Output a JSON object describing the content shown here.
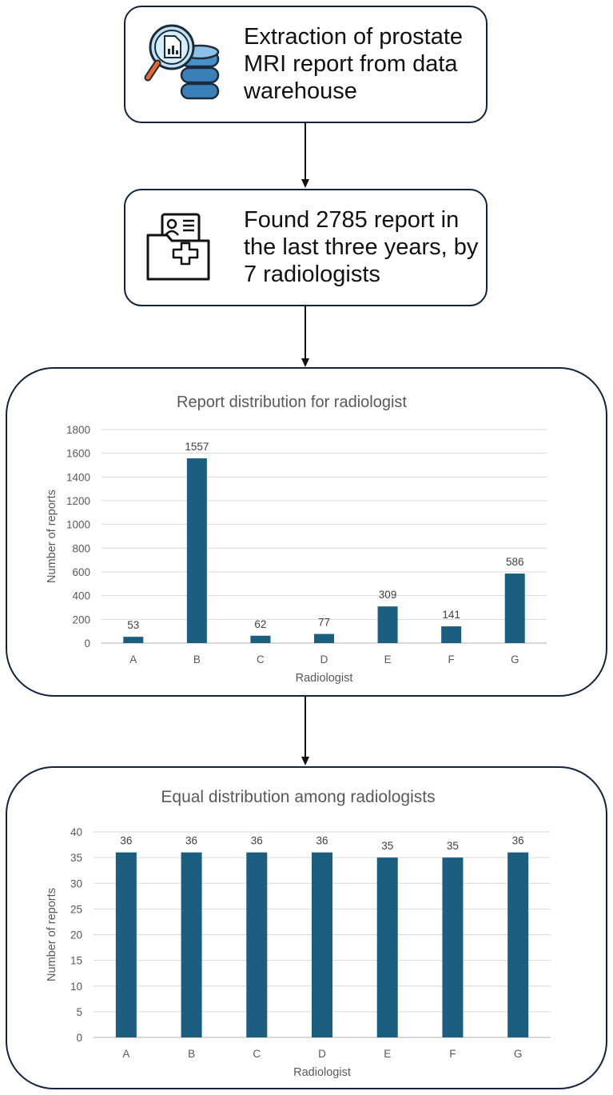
{
  "flow": {
    "step1": {
      "lines": [
        "Extraction of prostate",
        "MRI report from data",
        "warehouse"
      ],
      "icon": "magnifier-database-icon"
    },
    "step2": {
      "lines": [
        "Found 2785 report in",
        "the last three years, by",
        "7 radiologists"
      ],
      "icon": "medical-folder-icon"
    }
  },
  "colors": {
    "bar": "#1b5e80",
    "border": "#13233a",
    "grid": "#d9d9d9",
    "axis_text": "#595959",
    "title_text": "#595959"
  },
  "chart_data": [
    {
      "type": "bar",
      "title": "Report distribution for radiologist",
      "xlabel": "Radiologist",
      "ylabel": "Number of reports",
      "categories": [
        "A",
        "B",
        "C",
        "D",
        "E",
        "F",
        "G"
      ],
      "values": [
        53,
        1557,
        62,
        77,
        309,
        141,
        586
      ],
      "ylim": [
        0,
        1800
      ],
      "yticks": [
        0,
        200,
        400,
        600,
        800,
        1000,
        1200,
        1400,
        1600,
        1800
      ],
      "grid": true
    },
    {
      "type": "bar",
      "title": "Equal distribution among radiologists",
      "xlabel": "Radiologist",
      "ylabel": "Number of reports",
      "categories": [
        "A",
        "B",
        "C",
        "D",
        "E",
        "F",
        "G"
      ],
      "values": [
        36,
        36,
        36,
        36,
        35,
        35,
        36
      ],
      "ylim": [
        0,
        40
      ],
      "yticks": [
        0,
        5,
        10,
        15,
        20,
        25,
        30,
        35,
        40
      ],
      "grid": true
    }
  ]
}
